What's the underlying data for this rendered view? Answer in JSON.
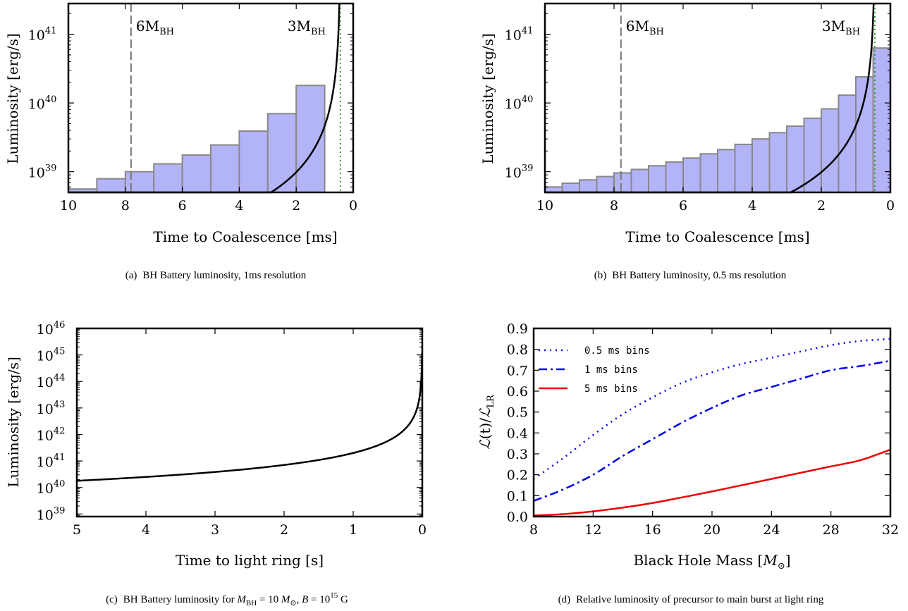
{
  "chart_data": [
    {
      "id": "a",
      "type": "bar",
      "caption_label": "(a)",
      "caption": "BH Battery luminosity, 1ms resolution",
      "xlabel": "Time to Coalescence [ms]",
      "ylabel": "Luminosity [erg/s]",
      "x_ticks": [
        "10",
        "8",
        "6",
        "4",
        "2",
        "0"
      ],
      "y_ticks": [
        {
          "base": "10",
          "exp": "39"
        },
        {
          "base": "10",
          "exp": "40"
        },
        {
          "base": "10",
          "exp": "41"
        }
      ],
      "xlim": [
        10,
        0
      ],
      "ylim": [
        5e+38,
        2.8e+41
      ],
      "y_scale": "log",
      "bar_width_ms": 1,
      "bar_left_edges_ms": [
        10,
        9,
        8,
        7,
        6,
        5,
        4,
        3,
        2,
        1
      ],
      "bar_values": [
        5.6e+38,
        7.9e+38,
        1e+39,
        1.3e+39,
        1.75e+39,
        2.45e+39,
        3.9e+39,
        7e+39,
        1.8e+40,
        0
      ],
      "curve_function": "1.9e39 * (t - 0.45)^(-1.5)",
      "curve_t_range": [
        0.45,
        10
      ],
      "annotations": [
        {
          "text_base": "6M",
          "text_sub": "BH",
          "x_ms": 7.8,
          "line": "dashed"
        },
        {
          "text_base": "3M",
          "text_sub": "BH",
          "x_ms": 0.45,
          "line": "dotted"
        }
      ],
      "colors": {
        "bar_fill": "#b3b3f7",
        "bar_edge": "#888888",
        "curve": "#000000",
        "dashed": "#777777",
        "dotted": "#2ca02c"
      }
    },
    {
      "id": "b",
      "type": "bar",
      "caption_label": "(b)",
      "caption": "BH Battery luminosity, 0.5 ms resolution",
      "xlabel": "Time to Coalescence [ms]",
      "ylabel": "Luminosity [erg/s]",
      "x_ticks": [
        "10",
        "8",
        "6",
        "4",
        "2",
        "0"
      ],
      "y_ticks": [
        {
          "base": "10",
          "exp": "39"
        },
        {
          "base": "10",
          "exp": "40"
        },
        {
          "base": "10",
          "exp": "41"
        }
      ],
      "xlim": [
        10,
        0
      ],
      "ylim": [
        5e+38,
        2.8e+41
      ],
      "y_scale": "log",
      "bar_width_ms": 0.5,
      "bar_left_edges_ms": [
        10,
        9.5,
        9,
        8.5,
        8,
        7.5,
        7,
        6.5,
        6,
        5.5,
        5,
        4.5,
        4,
        3.5,
        3,
        2.5,
        2,
        1.5,
        1,
        0.5
      ],
      "bar_values": [
        6e+38,
        6.8e+38,
        7.6e+38,
        8.5e+38,
        9.6e+38,
        1.08e+39,
        1.22e+39,
        1.38e+39,
        1.58e+39,
        1.82e+39,
        2.1e+39,
        2.5e+39,
        3e+39,
        3.7e+39,
        4.6e+39,
        6e+39,
        8.2e+39,
        1.3e+40,
        2.4e+40,
        6.3e+40
      ],
      "curve_function": "1.9e39 * (t - 0.45)^(-1.5)",
      "curve_t_range": [
        0.45,
        10
      ],
      "annotations": [
        {
          "text_base": "6M",
          "text_sub": "BH",
          "x_ms": 7.8,
          "line": "dashed"
        },
        {
          "text_base": "3M",
          "text_sub": "BH",
          "x_ms": 0.45,
          "line": "dotted"
        }
      ],
      "colors": {
        "bar_fill": "#b3b3f7",
        "bar_edge": "#888888",
        "curve": "#000000",
        "dashed": "#777777",
        "dotted": "#2ca02c"
      }
    },
    {
      "id": "c",
      "type": "line",
      "caption_label": "(c)",
      "caption": "BH Battery luminosity for M_BH = 10 M_⊙, B = 10^15 G",
      "caption_parts": {
        "pre": "BH Battery luminosity for ",
        "m": "M",
        "msub": "BH",
        "eq1": " = 10 ",
        "msun": "M",
        "sunsub": "⊙",
        "comma": ", ",
        "b": "B",
        "eq2": " = 10",
        "bexp": "15",
        "unit": " G"
      },
      "xlabel": "Time to light ring [s]",
      "ylabel": "Luminosity [erg/s]",
      "x_ticks": [
        "5",
        "4",
        "3",
        "2",
        "1",
        "0"
      ],
      "y_ticks": [
        {
          "base": "10",
          "exp": "39"
        },
        {
          "base": "10",
          "exp": "40"
        },
        {
          "base": "10",
          "exp": "41"
        },
        {
          "base": "10",
          "exp": "42"
        },
        {
          "base": "10",
          "exp": "43"
        },
        {
          "base": "10",
          "exp": "44"
        },
        {
          "base": "10",
          "exp": "45"
        },
        {
          "base": "10",
          "exp": "46"
        }
      ],
      "xlim": [
        5,
        0
      ],
      "ylim": [
        8e+38,
        1e+46
      ],
      "y_scale": "log",
      "curve_function": "2.0e41 * t^(-1.5)",
      "curve_t_range": [
        0.0031,
        5
      ],
      "colors": {
        "curve": "#000000"
      }
    },
    {
      "id": "d",
      "type": "line",
      "caption_label": "(d)",
      "caption": "Relative luminosity of precursor to main burst at light ring",
      "xlabel": "Black Hole Mass [M⊙]",
      "ylabel": "L(t)/L_LR",
      "xlabel_parts": {
        "pre": "Black Hole Mass [",
        "m": "M",
        "sub": "⊙",
        "post": "]"
      },
      "ylabel_parts": {
        "l1": "ℒ",
        "t": "(t)",
        "slash": "/",
        "l2": "ℒ",
        "sub": "LR"
      },
      "x_ticks": [
        "8",
        "12",
        "16",
        "20",
        "24",
        "28",
        "32"
      ],
      "y_ticks": [
        "0.0",
        "0.1",
        "0.2",
        "0.3",
        "0.4",
        "0.5",
        "0.6",
        "0.7",
        "0.8",
        "0.9"
      ],
      "xlim": [
        8,
        32
      ],
      "ylim": [
        0,
        0.9
      ],
      "x": [
        8,
        10,
        12,
        14,
        16,
        18,
        20,
        22,
        24,
        26,
        28,
        30,
        32
      ],
      "series": [
        {
          "name": "0.5 ms bins",
          "style": "dotted",
          "color": "#0000ee",
          "values": [
            0.18,
            0.28,
            0.39,
            0.49,
            0.57,
            0.64,
            0.69,
            0.73,
            0.76,
            0.79,
            0.82,
            0.84,
            0.85
          ]
        },
        {
          "name": "1 ms bins",
          "style": "dashdot",
          "color": "#0000ee",
          "values": [
            0.075,
            0.13,
            0.2,
            0.29,
            0.37,
            0.45,
            0.52,
            0.58,
            0.62,
            0.66,
            0.7,
            0.72,
            0.745
          ]
        },
        {
          "name": "5 ms bins",
          "style": "solid",
          "color": "#ee0000",
          "values": [
            0.005,
            0.012,
            0.025,
            0.043,
            0.065,
            0.092,
            0.12,
            0.15,
            0.18,
            0.21,
            0.24,
            0.27,
            0.32
          ]
        }
      ],
      "legend_placement": "top-left"
    }
  ]
}
